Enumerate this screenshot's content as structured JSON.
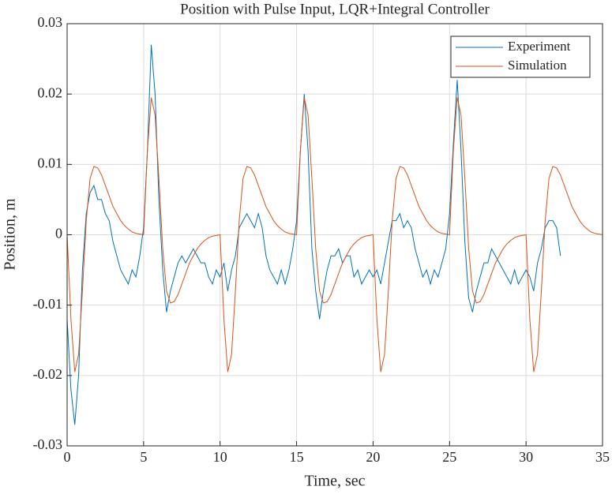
{
  "chart_data": {
    "type": "line",
    "title": "Position with Pulse Input, LQR+Integral Controller",
    "xlabel": "Time, sec",
    "ylabel": "Position, m",
    "xlim": [
      0,
      35
    ],
    "xticks": [
      0,
      5,
      10,
      15,
      20,
      25,
      30,
      35
    ],
    "ylim": [
      -0.03,
      0.03
    ],
    "yticks": [
      -0.03,
      -0.02,
      -0.01,
      0,
      0.01,
      0.02,
      0.03
    ],
    "grid": true,
    "legend": "northeast",
    "series": [
      {
        "name": "Experiment",
        "color": "#0072bd",
        "x": [
          0,
          0.25,
          0.5,
          0.75,
          1,
          1.25,
          1.5,
          1.75,
          2,
          2.25,
          2.5,
          2.75,
          3,
          3.25,
          3.5,
          3.75,
          4,
          4.25,
          4.5,
          4.75,
          5,
          5.25,
          5.5,
          5.75,
          6,
          6.25,
          6.5,
          6.75,
          7,
          7.25,
          7.5,
          7.75,
          8,
          8.25,
          8.5,
          8.75,
          9,
          9.25,
          9.5,
          9.75,
          10,
          10.25,
          10.5,
          10.75,
          11,
          11.25,
          11.5,
          11.75,
          12,
          12.25,
          12.5,
          12.75,
          13,
          13.25,
          13.5,
          13.75,
          14,
          14.25,
          14.5,
          14.75,
          15,
          15.25,
          15.5,
          15.75,
          16,
          16.25,
          16.5,
          16.75,
          17,
          17.25,
          17.5,
          17.75,
          18,
          18.25,
          18.5,
          18.75,
          19,
          19.25,
          19.5,
          19.75,
          20,
          20.25,
          20.5,
          20.75,
          21,
          21.25,
          21.5,
          21.75,
          22,
          22.25,
          22.5,
          22.75,
          23,
          23.25,
          23.5,
          23.75,
          24,
          24.25,
          24.5,
          24.75,
          25,
          25.25,
          25.5,
          25.75,
          26,
          26.25,
          26.5,
          26.75,
          27,
          27.25,
          27.5,
          27.75,
          28,
          28.25,
          28.5,
          28.75,
          29,
          29.25,
          29.5,
          29.75,
          30,
          30.25,
          30.5,
          30.75,
          31,
          31.25,
          31.5,
          31.75,
          32,
          32.25
        ],
        "values": [
          -0.012,
          -0.022,
          -0.027,
          -0.02,
          -0.005,
          0.003,
          0.006,
          0.007,
          0.005,
          0.005,
          0.003,
          0.002,
          -0.001,
          -0.003,
          -0.005,
          -0.006,
          -0.007,
          -0.005,
          -0.006,
          -0.003,
          0.001,
          0.012,
          0.027,
          0.02,
          0.005,
          -0.005,
          -0.011,
          -0.008,
          -0.006,
          -0.004,
          -0.003,
          -0.004,
          -0.003,
          -0.002,
          -0.003,
          -0.004,
          -0.004,
          -0.006,
          -0.007,
          -0.005,
          -0.006,
          -0.004,
          -0.008,
          -0.005,
          -0.003,
          0.001,
          0.002,
          0.003,
          0.002,
          0.001,
          0.003,
          0.001,
          -0.003,
          -0.005,
          -0.006,
          -0.007,
          -0.005,
          -0.007,
          -0.005,
          -0.002,
          0.002,
          0.012,
          0.02,
          0.012,
          -0.002,
          -0.008,
          -0.012,
          -0.008,
          -0.005,
          -0.003,
          -0.003,
          -0.002,
          -0.004,
          -0.003,
          -0.003,
          -0.006,
          -0.005,
          -0.007,
          -0.006,
          -0.005,
          -0.006,
          -0.005,
          -0.007,
          -0.004,
          -0.001,
          0.002,
          0.002,
          0.003,
          0.001,
          0.002,
          0.001,
          -0.002,
          -0.004,
          -0.006,
          -0.005,
          -0.007,
          -0.005,
          -0.006,
          -0.004,
          -0.002,
          0.003,
          0.013,
          0.022,
          0.012,
          -0.001,
          -0.009,
          -0.011,
          -0.008,
          -0.006,
          -0.004,
          -0.004,
          -0.002,
          -0.003,
          -0.004,
          -0.005,
          -0.006,
          -0.007,
          -0.005,
          -0.007,
          -0.006,
          -0.005,
          -0.006,
          -0.008,
          -0.004,
          -0.002,
          0.001,
          0.002,
          0.002,
          0.001,
          -0.003
        ]
      },
      {
        "name": "Simulation",
        "color": "#d95319",
        "x": [
          0,
          0.25,
          0.5,
          0.75,
          1,
          1.25,
          1.5,
          1.75,
          2,
          2.25,
          2.5,
          2.75,
          3,
          3.25,
          3.5,
          3.75,
          4,
          4.25,
          4.5,
          4.75,
          5,
          5.25,
          5.5,
          5.75,
          6,
          6.25,
          6.5,
          6.75,
          7,
          7.25,
          7.5,
          7.75,
          8,
          8.25,
          8.5,
          8.75,
          9,
          9.25,
          9.5,
          9.75,
          10,
          10.25,
          10.5,
          10.75,
          11,
          11.25,
          11.5,
          11.75,
          12,
          12.25,
          12.5,
          12.75,
          13,
          13.25,
          13.5,
          13.75,
          14,
          14.25,
          14.5,
          14.75,
          15,
          15.25,
          15.5,
          15.75,
          16,
          16.25,
          16.5,
          16.75,
          17,
          17.25,
          17.5,
          17.75,
          18,
          18.25,
          18.5,
          18.75,
          19,
          19.25,
          19.5,
          19.75,
          20,
          20.25,
          20.5,
          20.75,
          21,
          21.25,
          21.5,
          21.75,
          22,
          22.25,
          22.5,
          22.75,
          23,
          23.25,
          23.5,
          23.75,
          24,
          24.25,
          24.5,
          24.75,
          25,
          25.25,
          25.5,
          25.75,
          26,
          26.25,
          26.5,
          26.75,
          27,
          27.25,
          27.5,
          27.75,
          28,
          28.25,
          28.5,
          28.75,
          29,
          29.25,
          29.5,
          29.75,
          30,
          30.25,
          30.5,
          30.75,
          31,
          31.25,
          31.5,
          31.75,
          32,
          32.25,
          32.5,
          32.75,
          33,
          33.25,
          33.5,
          33.75,
          34,
          34.25,
          34.5,
          34.75,
          35
        ],
        "values": [
          0,
          -0.012,
          -0.0195,
          -0.017,
          -0.008,
          0.002,
          0.008,
          0.0097,
          0.0095,
          0.0085,
          0.007,
          0.0055,
          0.004,
          0.003,
          0.002,
          0.0013,
          0.0008,
          0.0004,
          0.0002,
          0.0001,
          0,
          0.012,
          0.0195,
          0.017,
          0.008,
          -0.002,
          -0.008,
          -0.0097,
          -0.0095,
          -0.0085,
          -0.007,
          -0.0055,
          -0.004,
          -0.003,
          -0.002,
          -0.0013,
          -0.0008,
          -0.0004,
          -0.0002,
          -0.0001,
          0,
          -0.012,
          -0.0195,
          -0.017,
          -0.008,
          0.002,
          0.008,
          0.0097,
          0.0095,
          0.0085,
          0.007,
          0.0055,
          0.004,
          0.003,
          0.002,
          0.0013,
          0.0008,
          0.0004,
          0.0002,
          0.0001,
          0,
          0.012,
          0.0195,
          0.017,
          0.008,
          -0.002,
          -0.008,
          -0.0097,
          -0.0095,
          -0.0085,
          -0.007,
          -0.0055,
          -0.004,
          -0.003,
          -0.002,
          -0.0013,
          -0.0008,
          -0.0004,
          -0.0002,
          -0.0001,
          0,
          -0.012,
          -0.0195,
          -0.017,
          -0.008,
          0.002,
          0.008,
          0.0097,
          0.0095,
          0.0085,
          0.007,
          0.0055,
          0.004,
          0.003,
          0.002,
          0.0013,
          0.0008,
          0.0004,
          0.0002,
          0.0001,
          0,
          0.012,
          0.0195,
          0.017,
          0.008,
          -0.002,
          -0.008,
          -0.0097,
          -0.0095,
          -0.0085,
          -0.007,
          -0.0055,
          -0.004,
          -0.003,
          -0.002,
          -0.0013,
          -0.0008,
          -0.0004,
          -0.0002,
          -0.0001,
          0,
          -0.012,
          -0.0195,
          -0.017,
          -0.008,
          0.002,
          0.008,
          0.0097,
          0.0095,
          0.0085,
          0.007,
          0.0055,
          0.004,
          0.003,
          0.002,
          0.0013,
          0.0008,
          0.0004,
          0.0002,
          0.0001,
          0
        ]
      }
    ]
  }
}
